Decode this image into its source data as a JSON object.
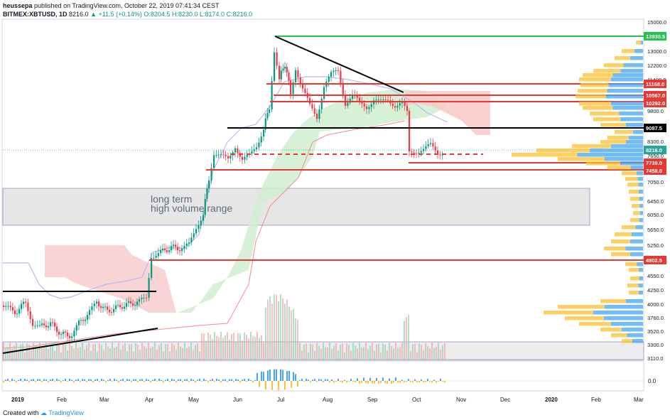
{
  "header": {
    "user": "heussepa",
    "published": "published on TradingView.com, October 22, 2019 07:41:34 CEST",
    "symbol": "BITMEX:XBTUSD, 1D",
    "last": "8216.0",
    "change": "+11.5 (+0.14%)",
    "open": "O:8204.5",
    "high": "H:8230.0",
    "low": "L:8174.0",
    "close": "C:8216.0"
  },
  "footer": {
    "created_with": "Created with",
    "brand": "TradingView"
  },
  "colors": {
    "up": "#089981",
    "down": "#f23645",
    "red_line": "#e53935",
    "green_line": "#22c24a",
    "black_line": "#000000",
    "kumo_red": "#f8c9c9",
    "kumo_green": "#cfeecf",
    "kijun": "#b8b8f5",
    "vp_orange": "#fbc02d",
    "vp_blue": "#42a5f5",
    "band_grey": "#e6e6e6"
  },
  "chart_data": {
    "type": "candlestick",
    "ylim": [
      2900,
      15200
    ],
    "y_ticks": [
      "15000.0",
      "14000.0",
      "13000.0",
      "12200.0",
      "11400.0",
      "10600.0",
      "9800.0",
      "9000.0",
      "8300.0",
      "7650.0",
      "7050.0",
      "6450.0",
      "6050.0",
      "5650.0",
      "5250.0",
      "4900.0",
      "4550.0",
      "4250.0",
      "4000.0",
      "3760.0",
      "3520.0",
      "3300.0",
      "3110.0"
    ],
    "x_ticks": [
      "2019",
      "Feb",
      "Mar",
      "Apr",
      "May",
      "Jun",
      "Jul",
      "Aug",
      "Sep",
      "Oct",
      "Nov",
      "Dec",
      "2020",
      "Feb",
      "Mar"
    ],
    "price_lines": [
      {
        "label": "13930.5",
        "value": 13930.5,
        "color": "#22c24a"
      },
      {
        "label": "11168.0",
        "value": 11168.0,
        "color": "#e53935"
      },
      {
        "label": "10567.0",
        "value": 10567.0,
        "color": "#e53935"
      },
      {
        "label": "10292.0",
        "value": 10292.0,
        "color": "#e53935"
      },
      {
        "label": "9087.5",
        "value": 9087.5,
        "color": "#000000"
      },
      {
        "label": "8216.0",
        "value": 8216.0,
        "color": "#26a69a"
      },
      {
        "label": "7739.0",
        "value": 7739.0,
        "color": "#e53935"
      },
      {
        "label": "7458.0",
        "value": 7458.0,
        "color": "#e53935"
      },
      {
        "label": "4902.5",
        "value": 4902.5,
        "color": "#e53935"
      }
    ],
    "annotations": [
      {
        "text": "long term",
        "kind": "label"
      },
      {
        "text": "high volume range",
        "kind": "label"
      }
    ],
    "indicator_axis": "0.0",
    "volume_profile": "right side, orange/blue histogram"
  }
}
